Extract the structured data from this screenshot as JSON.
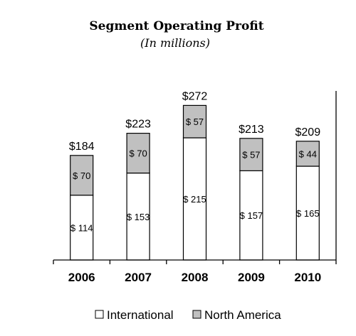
{
  "chart_data": {
    "type": "bar",
    "stacked": true,
    "title": "Segment Operating Profit",
    "subtitle": "(In millions)",
    "categories": [
      "2006",
      "2007",
      "2008",
      "2009",
      "2010"
    ],
    "series": [
      {
        "name": "International",
        "values": [
          114,
          153,
          215,
          157,
          165
        ],
        "labels": [
          "$ 114",
          "$ 153",
          "$ 215",
          "$ 157",
          "$ 165"
        ],
        "color": "#ffffff"
      },
      {
        "name": "North America",
        "values": [
          70,
          70,
          57,
          57,
          44
        ],
        "labels": [
          "$ 70",
          "$ 70",
          "$ 57",
          "$ 57",
          "$ 44"
        ],
        "color": "#c0c0c0"
      }
    ],
    "totals": [
      "$184",
      "$223",
      "$272",
      "$213",
      "$209"
    ],
    "ylim": [
      0,
      300
    ],
    "grid": false,
    "legend_position": "bottom"
  }
}
